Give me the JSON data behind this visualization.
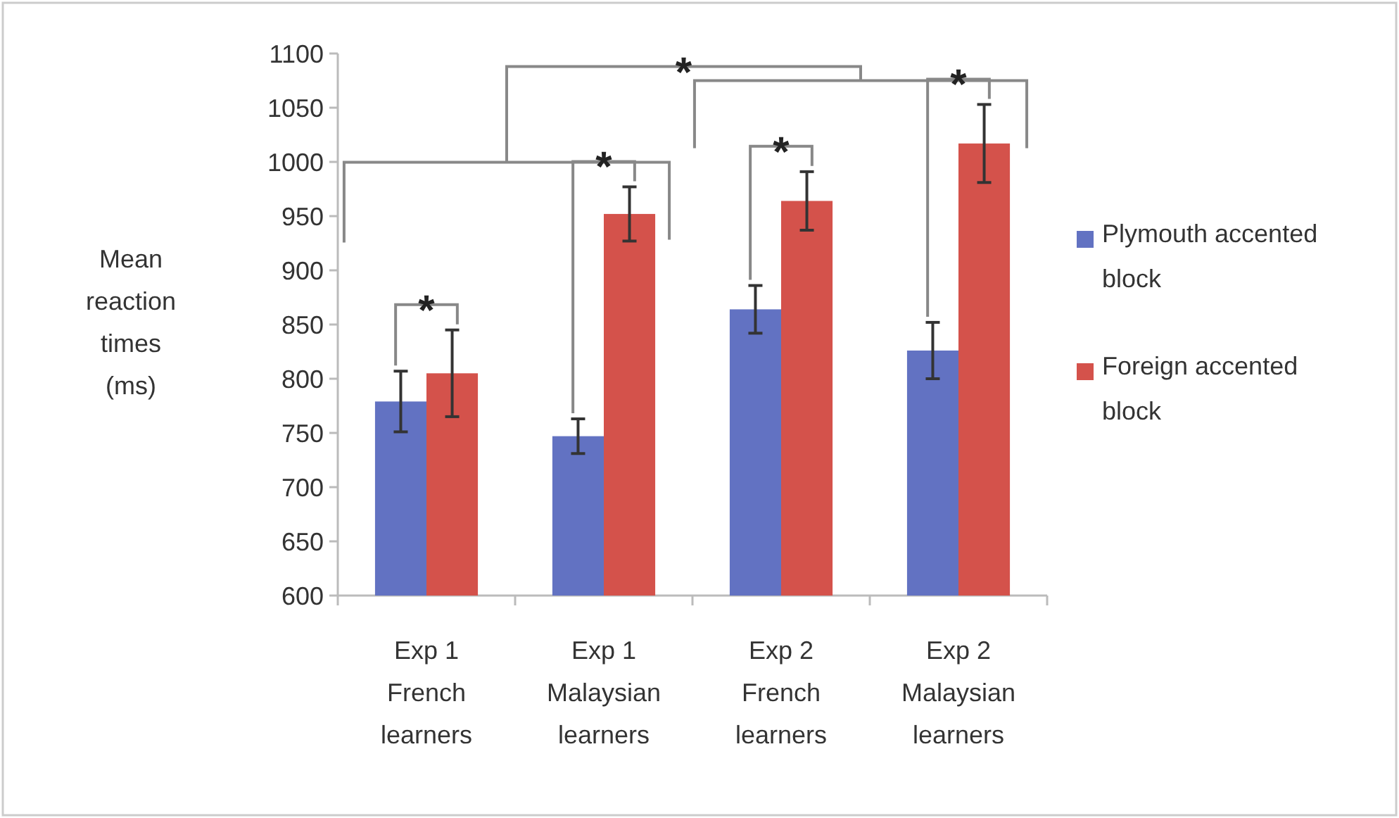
{
  "chart_data": {
    "type": "bar",
    "ylabel": "Mean reaction times (ms)",
    "categories": [
      "Exp 1 French learners",
      "Exp 1 Malaysian learners",
      "Exp 2 French learners",
      "Exp 2 Malaysian learners"
    ],
    "series": [
      {
        "name": "Plymouth accented block",
        "color": "#6272c2",
        "values": [
          779,
          747,
          864,
          826
        ],
        "errors": [
          28,
          16,
          22,
          26
        ]
      },
      {
        "name": "Foreign accented block",
        "color": "#d4524b",
        "values": [
          805,
          952,
          964,
          1017
        ],
        "errors": [
          40,
          25,
          27,
          36
        ]
      }
    ],
    "ylim": [
      600,
      1100
    ],
    "yticks": [
      600,
      650,
      700,
      750,
      800,
      850,
      900,
      950,
      1000,
      1050,
      1100
    ],
    "grid": false,
    "legend": "right",
    "annotations": [
      "*",
      "*",
      "*",
      "*",
      "*"
    ]
  }
}
